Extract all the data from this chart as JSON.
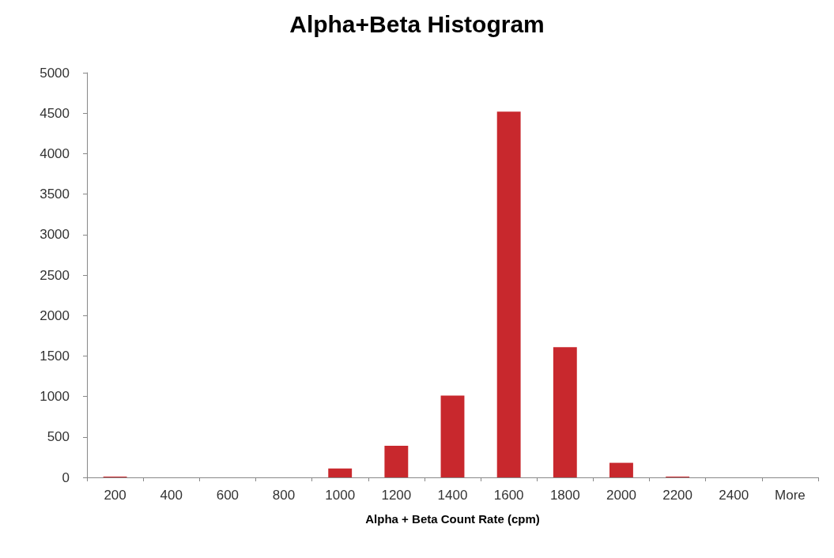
{
  "chart_data": {
    "type": "bar",
    "title": "Alpha+Beta Histogram",
    "xlabel": "Alpha + Beta Count Rate (cpm)",
    "categories": [
      "200",
      "400",
      "600",
      "800",
      "1000",
      "1200",
      "1400",
      "1600",
      "1800",
      "2000",
      "2200",
      "2400",
      "More"
    ],
    "values": [
      10,
      0,
      0,
      0,
      110,
      390,
      1010,
      4520,
      1610,
      180,
      10,
      0,
      0
    ],
    "color": "#c8282d",
    "ylim": [
      0,
      5000
    ],
    "yticks": [
      0,
      500,
      1000,
      1500,
      2000,
      2500,
      3000,
      3500,
      4000,
      4500,
      5000
    ],
    "grid": false
  }
}
